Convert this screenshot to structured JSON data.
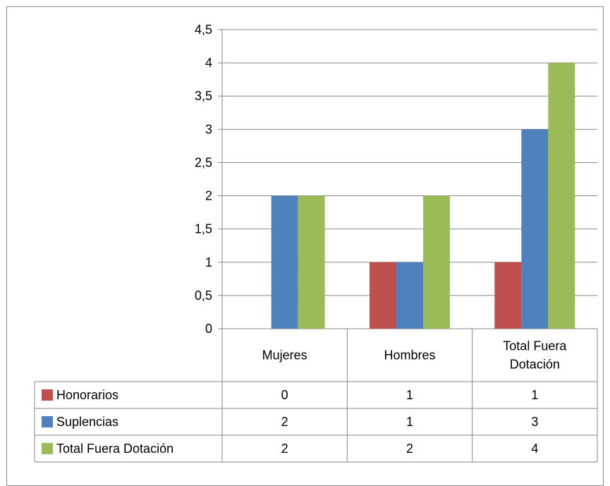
{
  "chart_data": {
    "type": "bar",
    "categories": [
      "Mujeres",
      "Hombres",
      "Total Fuera Dotación"
    ],
    "category_lines": [
      [
        "Mujeres"
      ],
      [
        "Hombres"
      ],
      [
        "Total Fuera",
        "Dotación"
      ]
    ],
    "series": [
      {
        "name": "Honorarios",
        "values": [
          0,
          1,
          1
        ],
        "display": [
          "0",
          "1",
          "1"
        ],
        "color": "#c0504d"
      },
      {
        "name": "Suplencias",
        "values": [
          2,
          1,
          3
        ],
        "display": [
          "2",
          "1",
          "3"
        ],
        "color": "#4f81bd"
      },
      {
        "name": "Total Fuera Dotación",
        "values": [
          2,
          2,
          4
        ],
        "display": [
          "2",
          "2",
          "4"
        ],
        "color": "#9bbb59"
      }
    ],
    "ylim": [
      0,
      4.5
    ],
    "y_ticks": [
      0,
      0.5,
      1,
      1.5,
      2,
      2.5,
      3,
      3.5,
      4,
      4.5
    ],
    "y_tick_labels": [
      "0",
      "0,5",
      "1",
      "1,5",
      "2",
      "2,5",
      "3",
      "3,5",
      "4",
      "4,5"
    ],
    "grid": true,
    "legend": "data-table"
  }
}
